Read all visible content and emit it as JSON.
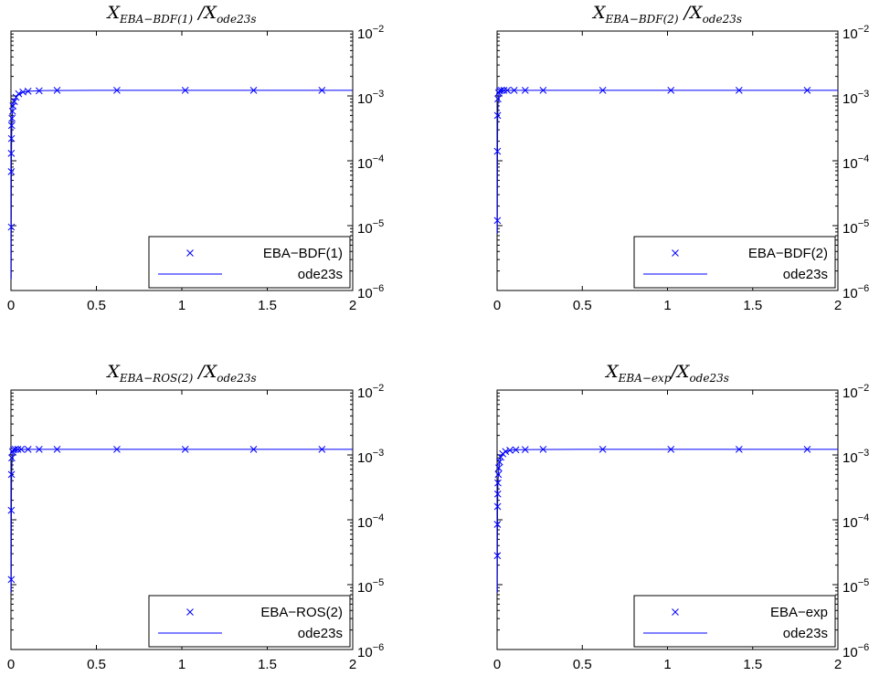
{
  "figure": {
    "axis_color": "#000000",
    "series_color": "#0000ff"
  },
  "chart_data": [
    {
      "type": "line",
      "title": {
        "main": "X",
        "sub": "EBA−BDF(1)",
        "mid": " /X",
        "sub2": "ode23s"
      },
      "xlabel": "",
      "ylabel": "",
      "xlim": [
        0,
        2
      ],
      "ylim": [
        1e-06,
        0.01
      ],
      "yscale": "log",
      "y_axis_side": "right",
      "x_ticks": [
        "0",
        "0.5",
        "1",
        "1.5",
        "2"
      ],
      "y_ticks": [
        {
          "base": "10",
          "exp": "−6"
        },
        {
          "base": "10",
          "exp": "−5"
        },
        {
          "base": "10",
          "exp": "−4"
        },
        {
          "base": "10",
          "exp": "−3"
        },
        {
          "base": "10",
          "exp": "−2"
        }
      ],
      "grid": false,
      "legend_position": "bottom-right",
      "series": [
        {
          "name": "EBA−BDF(1)",
          "style": "markers-x",
          "points": [
            [
              0.002,
              9.5e-06
            ],
            [
              0.002,
              6.8e-05
            ],
            [
              0.002,
              0.00013
            ],
            [
              0.003,
              0.00022
            ],
            [
              0.004,
              0.00035
            ],
            [
              0.006,
              0.00045
            ],
            [
              0.009,
              0.00058
            ],
            [
              0.012,
              0.0007
            ],
            [
              0.02,
              0.00082
            ],
            [
              0.03,
              0.00095
            ],
            [
              0.045,
              0.00108
            ],
            [
              0.07,
              0.00115
            ],
            [
              0.1,
              0.00118
            ],
            [
              0.165,
              0.0012
            ],
            [
              0.27,
              0.00122
            ],
            [
              0.62,
              0.00122
            ],
            [
              1.02,
              0.00122
            ],
            [
              1.42,
              0.00122
            ],
            [
              1.82,
              0.00122
            ]
          ]
        },
        {
          "name": "ode23s",
          "style": "line",
          "points": [
            [
              0.0015,
              1.5e-06
            ],
            [
              0.002,
              9.5e-06
            ],
            [
              0.0025,
              4e-05
            ],
            [
              0.003,
              0.00013
            ],
            [
              0.005,
              0.00035
            ],
            [
              0.008,
              0.00052
            ],
            [
              0.012,
              0.0007
            ],
            [
              0.02,
              0.00085
            ],
            [
              0.035,
              0.001
            ],
            [
              0.06,
              0.00112
            ],
            [
              0.1,
              0.00118
            ],
            [
              0.2,
              0.00121
            ],
            [
              0.5,
              0.00122
            ],
            [
              1.0,
              0.00122
            ],
            [
              2.0,
              0.00122
            ]
          ]
        }
      ]
    },
    {
      "type": "line",
      "title": {
        "main": "X",
        "sub": "EBA−BDF(2)",
        "mid": " /X",
        "sub2": "ode23s"
      },
      "xlabel": "",
      "ylabel": "",
      "xlim": [
        0,
        2
      ],
      "ylim": [
        1e-06,
        0.01
      ],
      "yscale": "log",
      "y_axis_side": "right",
      "x_ticks": [
        "0",
        "0.5",
        "1",
        "1.5",
        "2"
      ],
      "y_ticks": [
        {
          "base": "10",
          "exp": "−6"
        },
        {
          "base": "10",
          "exp": "−5"
        },
        {
          "base": "10",
          "exp": "−4"
        },
        {
          "base": "10",
          "exp": "−3"
        },
        {
          "base": "10",
          "exp": "−2"
        }
      ],
      "grid": false,
      "legend_position": "bottom-right",
      "series": [
        {
          "name": "EBA−BDF(2)",
          "style": "markers-x",
          "points": [
            [
              0.002,
              1.2e-05
            ],
            [
              0.002,
              0.00014
            ],
            [
              0.003,
              0.0005
            ],
            [
              0.005,
              0.0009
            ],
            [
              0.009,
              0.00112
            ],
            [
              0.015,
              0.0012
            ],
            [
              0.025,
              0.00122
            ],
            [
              0.04,
              0.00122
            ],
            [
              0.06,
              0.00122
            ],
            [
              0.1,
              0.00122
            ],
            [
              0.165,
              0.00122
            ],
            [
              0.27,
              0.00122
            ],
            [
              0.62,
              0.00122
            ],
            [
              1.02,
              0.00122
            ],
            [
              1.42,
              0.00122
            ],
            [
              1.82,
              0.00122
            ]
          ]
        },
        {
          "name": "ode23s",
          "style": "line",
          "points": [
            [
              0.0015,
              7.5e-06
            ],
            [
              0.002,
              2e-05
            ],
            [
              0.0025,
              8e-05
            ],
            [
              0.003,
              0.00025
            ],
            [
              0.004,
              0.0005
            ],
            [
              0.006,
              0.0008
            ],
            [
              0.01,
              0.00105
            ],
            [
              0.02,
              0.00118
            ],
            [
              0.04,
              0.00121
            ],
            [
              0.1,
              0.00122
            ],
            [
              0.5,
              0.00122
            ],
            [
              1.0,
              0.00122
            ],
            [
              2.0,
              0.00122
            ]
          ]
        }
      ]
    },
    {
      "type": "line",
      "title": {
        "main": "X",
        "sub": "EBA−ROS(2)",
        "mid": " /X",
        "sub2": "ode23s"
      },
      "xlabel": "",
      "ylabel": "",
      "xlim": [
        0,
        2
      ],
      "ylim": [
        1e-06,
        0.01
      ],
      "yscale": "log",
      "y_axis_side": "right",
      "x_ticks": [
        "0",
        "0.5",
        "1",
        "1.5",
        "2"
      ],
      "y_ticks": [
        {
          "base": "10",
          "exp": "−6"
        },
        {
          "base": "10",
          "exp": "−5"
        },
        {
          "base": "10",
          "exp": "−4"
        },
        {
          "base": "10",
          "exp": "−3"
        },
        {
          "base": "10",
          "exp": "−2"
        }
      ],
      "grid": false,
      "legend_position": "bottom-right",
      "series": [
        {
          "name": "EBA−ROS(2)",
          "style": "markers-x",
          "points": [
            [
              0.002,
              1.2e-05
            ],
            [
              0.002,
              0.00014
            ],
            [
              0.003,
              0.0005
            ],
            [
              0.005,
              0.0009
            ],
            [
              0.009,
              0.00112
            ],
            [
              0.015,
              0.0012
            ],
            [
              0.025,
              0.00122
            ],
            [
              0.04,
              0.00122
            ],
            [
              0.06,
              0.00122
            ],
            [
              0.1,
              0.00122
            ],
            [
              0.165,
              0.00122
            ],
            [
              0.27,
              0.00122
            ],
            [
              0.62,
              0.00122
            ],
            [
              1.02,
              0.00122
            ],
            [
              1.42,
              0.00122
            ],
            [
              1.82,
              0.00122
            ]
          ]
        },
        {
          "name": "ode23s",
          "style": "line",
          "points": [
            [
              0.0015,
              7.5e-06
            ],
            [
              0.002,
              2e-05
            ],
            [
              0.0025,
              8e-05
            ],
            [
              0.003,
              0.00025
            ],
            [
              0.004,
              0.0005
            ],
            [
              0.006,
              0.0008
            ],
            [
              0.01,
              0.00105
            ],
            [
              0.02,
              0.00118
            ],
            [
              0.04,
              0.00121
            ],
            [
              0.1,
              0.00122
            ],
            [
              0.5,
              0.00122
            ],
            [
              1.0,
              0.00122
            ],
            [
              2.0,
              0.00122
            ]
          ]
        }
      ]
    },
    {
      "type": "line",
      "title": {
        "main": "X",
        "sub": "EBA−exp",
        "mid": "/X",
        "sub2": "ode23s"
      },
      "xlabel": "",
      "ylabel": "",
      "xlim": [
        0,
        2
      ],
      "ylim": [
        1e-06,
        0.01
      ],
      "yscale": "log",
      "y_axis_side": "right",
      "x_ticks": [
        "0",
        "0.5",
        "1",
        "1.5",
        "2"
      ],
      "y_ticks": [
        {
          "base": "10",
          "exp": "−6"
        },
        {
          "base": "10",
          "exp": "−5"
        },
        {
          "base": "10",
          "exp": "−4"
        },
        {
          "base": "10",
          "exp": "−3"
        },
        {
          "base": "10",
          "exp": "−2"
        }
      ],
      "grid": false,
      "legend_position": "bottom-right",
      "series": [
        {
          "name": "EBA−exp",
          "style": "markers-x",
          "points": [
            [
              0.002,
              2.8e-05
            ],
            [
              0.002,
              8.5e-05
            ],
            [
              0.003,
              0.00016
            ],
            [
              0.004,
              0.00025
            ],
            [
              0.005,
              0.00037
            ],
            [
              0.007,
              0.0005
            ],
            [
              0.01,
              0.00063
            ],
            [
              0.015,
              0.00078
            ],
            [
              0.022,
              0.00092
            ],
            [
              0.033,
              0.00104
            ],
            [
              0.05,
              0.00113
            ],
            [
              0.075,
              0.00118
            ],
            [
              0.11,
              0.0012
            ],
            [
              0.165,
              0.00121
            ],
            [
              0.27,
              0.00122
            ],
            [
              0.62,
              0.00122
            ],
            [
              1.02,
              0.00122
            ],
            [
              1.42,
              0.00122
            ],
            [
              1.82,
              0.00122
            ]
          ]
        },
        {
          "name": "ode23s",
          "style": "line",
          "points": [
            [
              0.0015,
              7.5e-06
            ],
            [
              0.002,
              2.8e-05
            ],
            [
              0.003,
              0.00016
            ],
            [
              0.005,
              0.00037
            ],
            [
              0.01,
              0.00063
            ],
            [
              0.02,
              0.0009
            ],
            [
              0.035,
              0.00105
            ],
            [
              0.06,
              0.00115
            ],
            [
              0.1,
              0.0012
            ],
            [
              0.2,
              0.00121
            ],
            [
              0.5,
              0.00122
            ],
            [
              1.0,
              0.00122
            ],
            [
              2.0,
              0.00122
            ]
          ]
        }
      ]
    }
  ]
}
